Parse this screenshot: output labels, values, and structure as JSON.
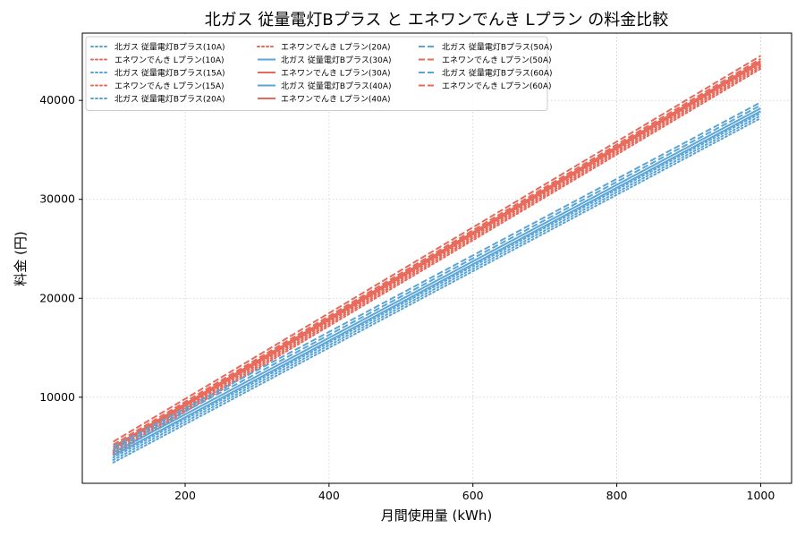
{
  "chart_data": {
    "type": "line",
    "title": "北ガス 従量電灯Bプラス と エネワンでんき Lプラン の料金比較",
    "xlabel": "月間使用量 (kWh)",
    "ylabel": "料金 (円)",
    "xlim": [
      57,
      1043
    ],
    "ylim": [
      1300,
      46800
    ],
    "xticks": [
      200,
      400,
      600,
      800,
      1000
    ],
    "yticks": [
      10000,
      20000,
      30000,
      40000
    ],
    "grid": true,
    "legend_position": "top-left",
    "legend_columns": 3,
    "colors": {
      "hokugas": "#5aa5d8",
      "enewan": "#e8695a"
    },
    "series": [
      {
        "name": "北ガス 従量電灯Bプラス(10A)",
        "color": "#5aa5d8",
        "dash": "dotted",
        "x": [
          100,
          1000
        ],
        "y": [
          3400,
          38200
        ]
      },
      {
        "name": "エネワンでんき Lプラン(10A)",
        "color": "#e8695a",
        "dash": "dotted",
        "x": [
          100,
          1000
        ],
        "y": [
          4200,
          43200
        ]
      },
      {
        "name": "北ガス 従量電灯Bプラス(15A)",
        "color": "#5aa5d8",
        "dash": "dotted",
        "x": [
          100,
          1000
        ],
        "y": [
          3650,
          38450
        ]
      },
      {
        "name": "エネワンでんき Lプラン(15A)",
        "color": "#e8695a",
        "dash": "dotted",
        "x": [
          100,
          1000
        ],
        "y": [
          4400,
          43400
        ]
      },
      {
        "name": "北ガス 従量電灯Bプラス(20A)",
        "color": "#5aa5d8",
        "dash": "dotted",
        "x": [
          100,
          1000
        ],
        "y": [
          3900,
          38700
        ]
      },
      {
        "name": "エネワンでんき Lプラン(20A)",
        "color": "#e8695a",
        "dash": "dotted",
        "x": [
          100,
          1000
        ],
        "y": [
          4600,
          43600
        ]
      },
      {
        "name": "北ガス 従量電灯Bプラス(30A)",
        "color": "#5aa5d8",
        "dash": "solid",
        "x": [
          100,
          1000
        ],
        "y": [
          4100,
          38900
        ]
      },
      {
        "name": "エネワンでんき Lプラン(30A)",
        "color": "#e8695a",
        "dash": "solid",
        "x": [
          100,
          1000
        ],
        "y": [
          4800,
          43800
        ]
      },
      {
        "name": "北ガス 従量電灯Bプラス(40A)",
        "color": "#5aa5d8",
        "dash": "solid",
        "x": [
          100,
          1000
        ],
        "y": [
          4400,
          39200
        ]
      },
      {
        "name": "エネワンでんき Lプラン(40A)",
        "color": "#e8695a",
        "dash": "solid",
        "x": [
          100,
          1000
        ],
        "y": [
          5000,
          44000
        ]
      },
      {
        "name": "北ガス 従量電灯Bプラス(50A)",
        "color": "#5aa5d8",
        "dash": "dashed",
        "x": [
          100,
          1000
        ],
        "y": [
          4700,
          39500
        ]
      },
      {
        "name": "エネワンでんき Lプラン(50A)",
        "color": "#e8695a",
        "dash": "dashed",
        "x": [
          100,
          1000
        ],
        "y": [
          5200,
          44200
        ]
      },
      {
        "name": "北ガス 従量電灯Bプラス(60A)",
        "color": "#5aa5d8",
        "dash": "dashed",
        "x": [
          100,
          1000
        ],
        "y": [
          5000,
          39800
        ]
      },
      {
        "name": "エネワンでんき Lプラン(60A)",
        "color": "#e8695a",
        "dash": "dashed",
        "x": [
          100,
          1000
        ],
        "y": [
          5500,
          44500
        ]
      }
    ]
  }
}
